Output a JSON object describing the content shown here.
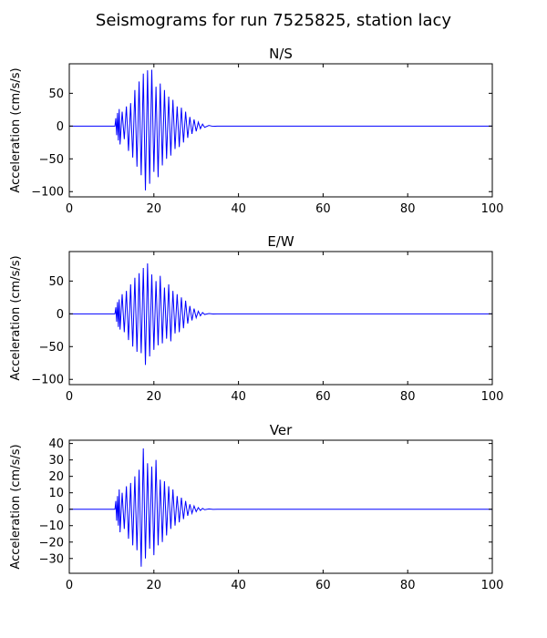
{
  "figure": {
    "title": "Seismograms for run 7525825, station lacy"
  },
  "chart_data": [
    {
      "type": "line",
      "title": "N/S",
      "xlabel": "",
      "ylabel": "Acceleration (cm/s/s)",
      "xlim": [
        0,
        100
      ],
      "ylim": [
        -108,
        95
      ],
      "xticks": [
        0,
        20,
        40,
        60,
        80,
        100
      ],
      "yticks": [
        -100,
        -50,
        0,
        50
      ],
      "line_color": "#0000ff",
      "grid": false,
      "series": [
        {
          "x": [
            0,
            10.8,
            11.0,
            11.2,
            11.4,
            11.6,
            11.8,
            12.0,
            12.5,
            13.0,
            13.5,
            14.0,
            14.5,
            15.0,
            15.5,
            16.0,
            16.5,
            17.0,
            17.5,
            18.0,
            18.5,
            19.0,
            19.5,
            20.0,
            20.5,
            21.0,
            21.5,
            22.0,
            22.5,
            23.0,
            23.5,
            24.0,
            24.5,
            25.0,
            25.5,
            26.0,
            26.5,
            27.0,
            27.5,
            28.0,
            28.5,
            29.0,
            29.5,
            30.0,
            30.5,
            31.0,
            31.5,
            32.0,
            33.0,
            34.0,
            35.0,
            100
          ],
          "y": [
            0,
            0,
            12,
            -14,
            20,
            -22,
            26,
            -28,
            22,
            -20,
            30,
            -38,
            35,
            -48,
            55,
            -62,
            68,
            -75,
            80,
            -98,
            85,
            -88,
            86,
            -70,
            60,
            -78,
            65,
            -60,
            55,
            -50,
            45,
            -45,
            40,
            -35,
            30,
            -32,
            28,
            -25,
            22,
            -18,
            14,
            -12,
            10,
            -8,
            6,
            -4,
            3,
            -2,
            1,
            -0.5,
            0,
            0
          ]
        }
      ]
    },
    {
      "type": "line",
      "title": "E/W",
      "xlabel": "",
      "ylabel": "Acceleration (cm/s/s)",
      "xlim": [
        0,
        100
      ],
      "ylim": [
        -108,
        95
      ],
      "xticks": [
        0,
        20,
        40,
        60,
        80,
        100
      ],
      "yticks": [
        -100,
        -50,
        0,
        50
      ],
      "line_color": "#0000ff",
      "grid": false,
      "series": [
        {
          "x": [
            0,
            10.8,
            11.0,
            11.2,
            11.4,
            11.6,
            11.8,
            12.0,
            12.5,
            13.0,
            13.5,
            14.0,
            14.5,
            15.0,
            15.5,
            16.0,
            16.5,
            17.0,
            17.5,
            18.0,
            18.5,
            19.0,
            19.5,
            20.0,
            20.5,
            21.0,
            21.5,
            22.0,
            22.5,
            23.0,
            23.5,
            24.0,
            24.5,
            25.0,
            25.5,
            26.0,
            26.5,
            27.0,
            27.5,
            28.0,
            28.5,
            29.0,
            29.5,
            30.0,
            30.5,
            31.0,
            31.5,
            32.0,
            33.0,
            34.0,
            35.0,
            100
          ],
          "y": [
            0,
            0,
            10,
            -12,
            18,
            -20,
            22,
            -24,
            30,
            -28,
            35,
            -40,
            45,
            -50,
            55,
            -58,
            62,
            -60,
            70,
            -78,
            77,
            -65,
            60,
            -55,
            50,
            -48,
            58,
            -45,
            40,
            -38,
            45,
            -42,
            35,
            -30,
            30,
            -28,
            25,
            -22,
            20,
            -15,
            12,
            -10,
            8,
            -6,
            4,
            -3,
            2,
            -1,
            0.5,
            -0.3,
            0,
            0
          ]
        }
      ]
    },
    {
      "type": "line",
      "title": "Ver",
      "xlabel": "",
      "ylabel": "Acceleration (cm/s/s)",
      "xlim": [
        0,
        100
      ],
      "ylim": [
        -39,
        42
      ],
      "xticks": [
        0,
        20,
        40,
        60,
        80,
        100
      ],
      "yticks": [
        -30,
        -20,
        -10,
        0,
        10,
        20,
        30,
        40
      ],
      "line_color": "#0000ff",
      "grid": false,
      "series": [
        {
          "x": [
            0,
            10.8,
            11.0,
            11.2,
            11.4,
            11.6,
            11.8,
            12.0,
            12.5,
            13.0,
            13.5,
            14.0,
            14.5,
            15.0,
            15.5,
            16.0,
            16.5,
            17.0,
            17.5,
            18.0,
            18.5,
            19.0,
            19.5,
            20.0,
            20.5,
            21.0,
            21.5,
            22.0,
            22.5,
            23.0,
            23.5,
            24.0,
            24.5,
            25.0,
            25.5,
            26.0,
            26.5,
            27.0,
            27.5,
            28.0,
            28.5,
            29.0,
            29.5,
            30.0,
            30.5,
            31.0,
            31.5,
            32.0,
            33.0,
            34.0,
            35.0,
            100
          ],
          "y": [
            0,
            0,
            5,
            -7,
            8,
            -10,
            12,
            -14,
            10,
            -12,
            14,
            -18,
            16,
            -22,
            20,
            -25,
            24,
            -35,
            37,
            -30,
            28,
            -24,
            26,
            -28,
            30,
            -22,
            18,
            -20,
            17,
            -16,
            14,
            -12,
            12,
            -10,
            8,
            -8,
            7,
            -6,
            5,
            -4,
            3,
            -2.5,
            2,
            -1.5,
            1,
            -0.8,
            0.5,
            -0.3,
            0.2,
            -0.1,
            0,
            0
          ]
        }
      ]
    }
  ]
}
